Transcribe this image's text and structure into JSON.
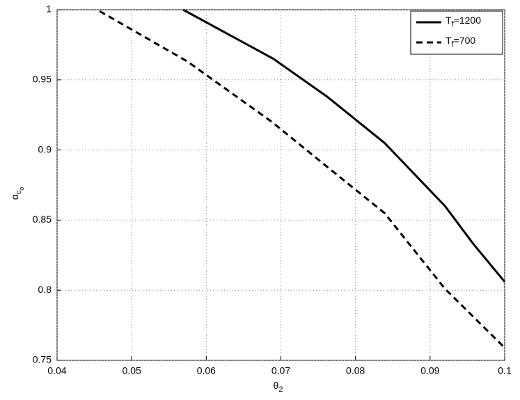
{
  "chart_data": {
    "type": "line",
    "x_label": "θ2",
    "y_label": "αco",
    "xlim": [
      0.04,
      0.1
    ],
    "ylim": [
      0.75,
      1
    ],
    "xticks": [
      0.04,
      0.05,
      0.06,
      0.07,
      0.08,
      0.09,
      0.1
    ],
    "yticks": [
      0.75,
      0.8,
      0.85,
      0.9,
      0.95,
      1
    ],
    "grid": true,
    "legend": "upper right",
    "series": [
      {
        "name": "Tf=1200",
        "color": "#000000",
        "dash": "solid",
        "x": [
          0.0569,
          0.069,
          0.0762,
          0.0839,
          0.092,
          0.0958,
          0.1
        ],
        "values": [
          1,
          0.965,
          0.938,
          0.905,
          0.86,
          0.833,
          0.806
        ]
      },
      {
        "name": "Tf=700",
        "color": "#000000",
        "dash": "dashed",
        "x": [
          0.0457,
          0.0575,
          0.0688,
          0.0762,
          0.0839,
          0.092,
          0.1
        ],
        "values": [
          0.999,
          0.963,
          0.92,
          0.888,
          0.855,
          0.801,
          0.759
        ]
      }
    ]
  }
}
